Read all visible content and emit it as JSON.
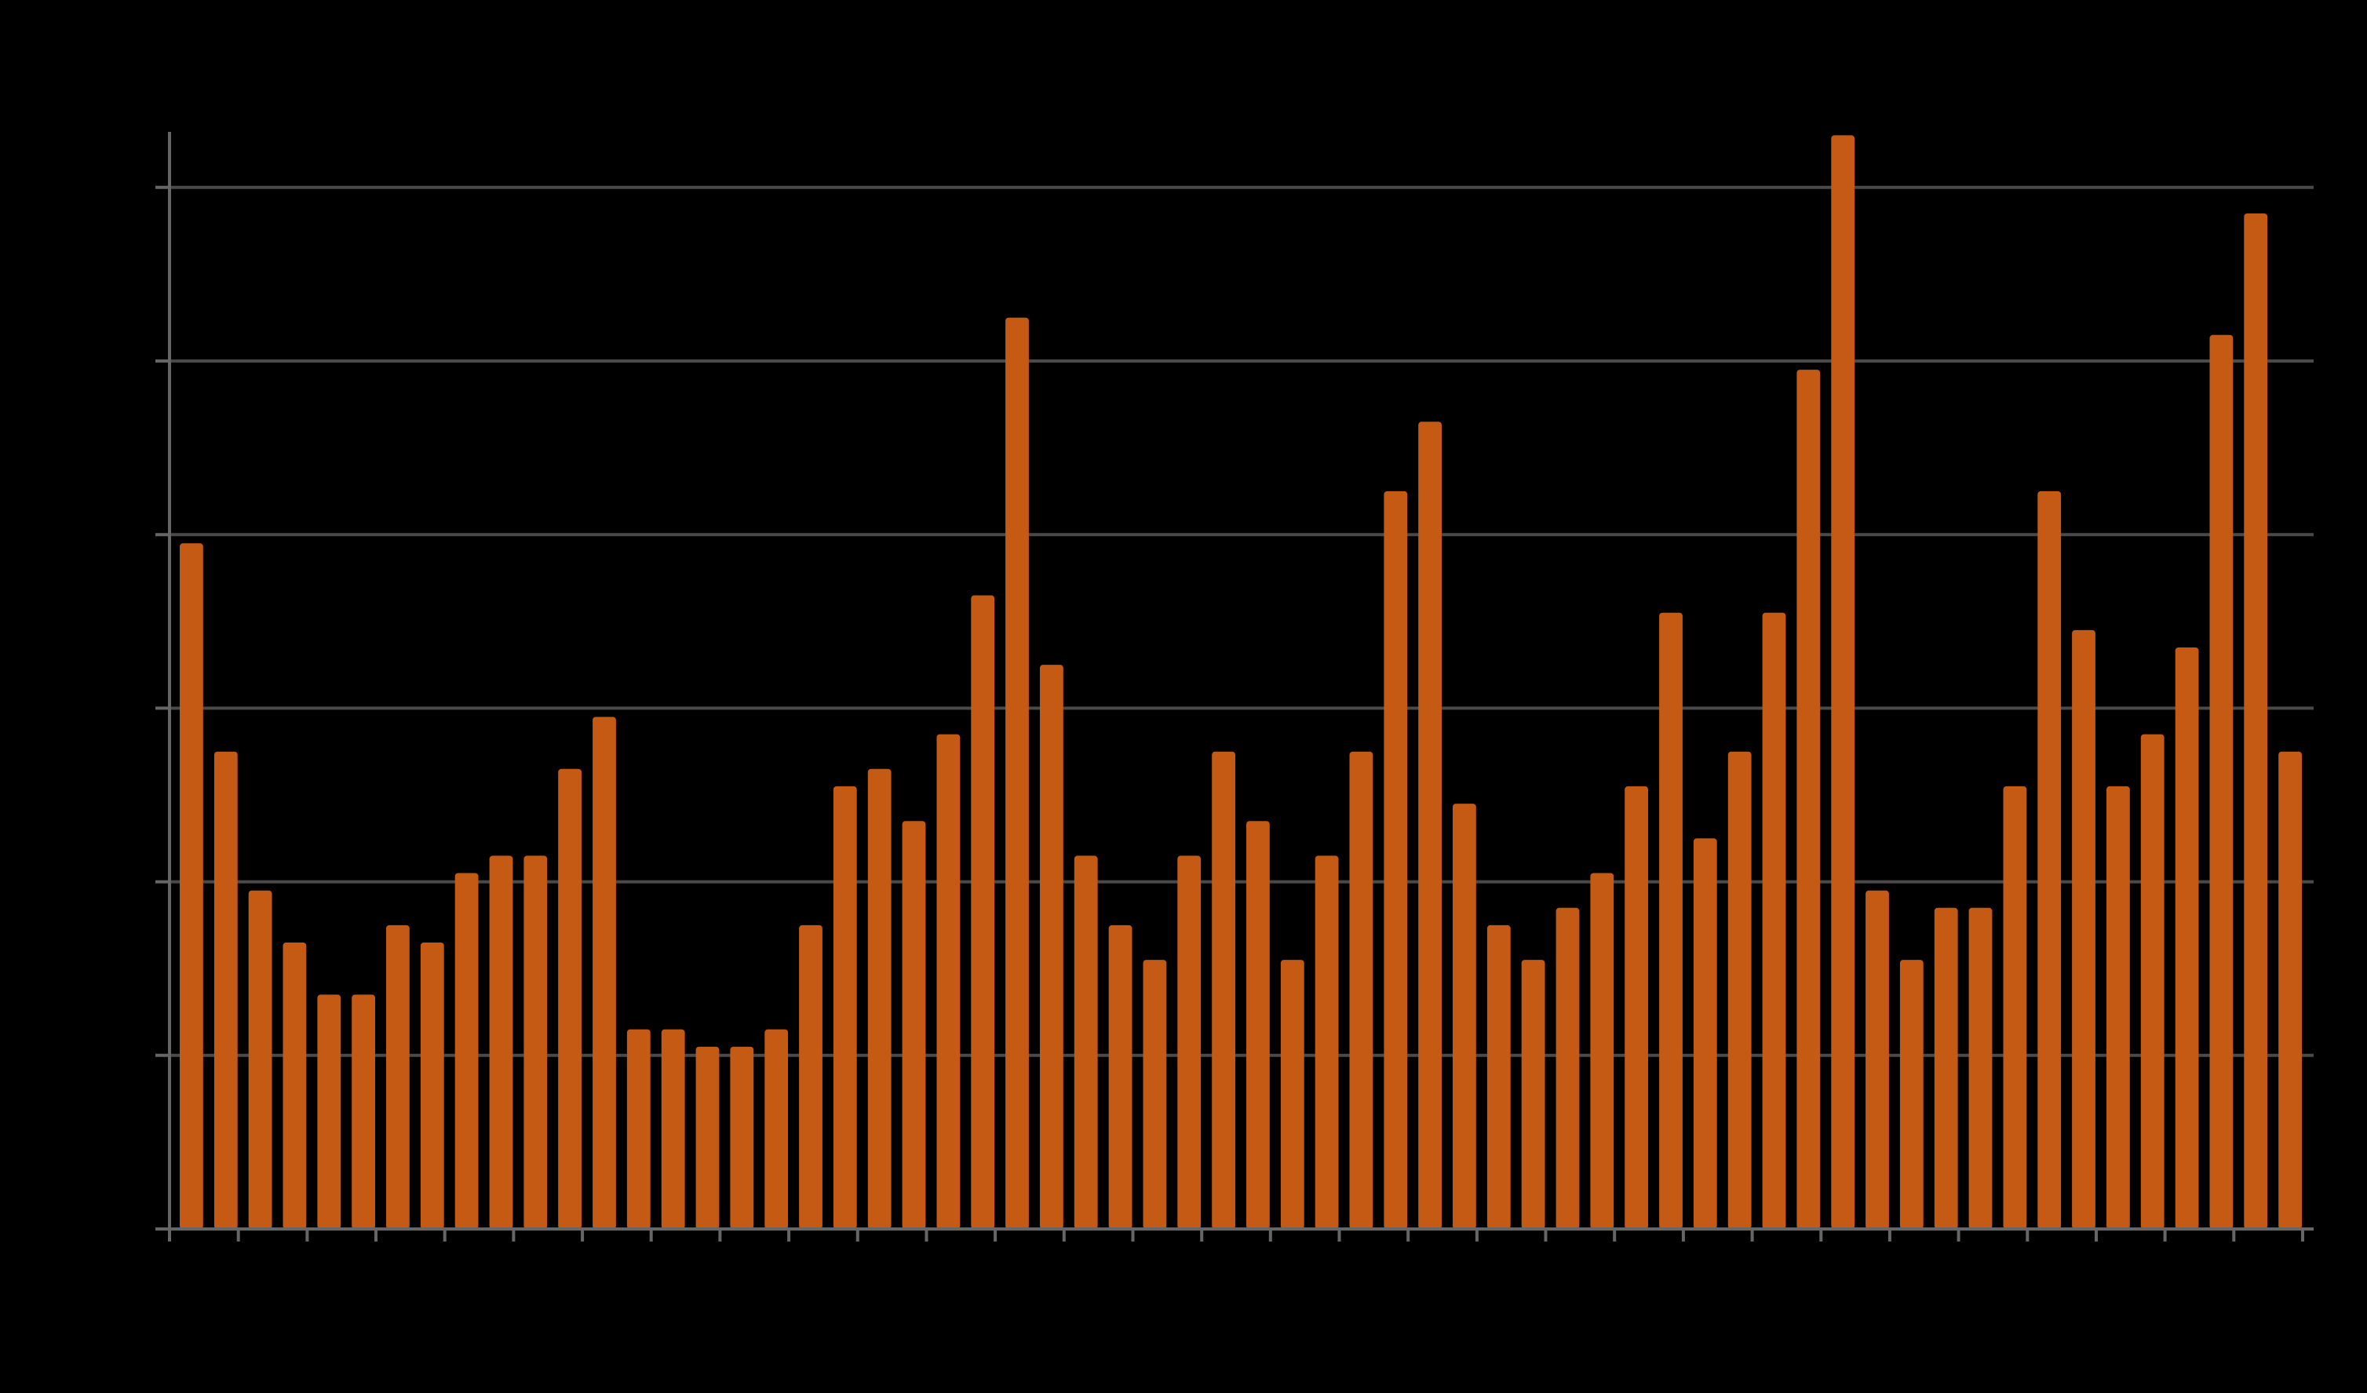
{
  "chart_data": {
    "type": "bar",
    "title": "",
    "xlabel": "",
    "ylabel": "",
    "ylim": [
      0,
      6.3
    ],
    "grid": true,
    "gridlines": [
      1,
      2,
      3,
      4,
      5,
      6
    ],
    "values": [
      3.95,
      2.75,
      1.95,
      1.65,
      1.35,
      1.35,
      1.75,
      1.65,
      2.05,
      2.15,
      2.15,
      2.65,
      2.95,
      1.15,
      1.15,
      1.05,
      1.05,
      1.15,
      1.75,
      2.55,
      2.65,
      2.35,
      2.85,
      3.65,
      5.25,
      3.25,
      2.15,
      1.75,
      1.55,
      2.15,
      2.75,
      2.35,
      1.55,
      2.15,
      2.75,
      4.25,
      4.65,
      2.45,
      1.75,
      1.55,
      1.85,
      2.05,
      2.55,
      3.55,
      2.25,
      2.75,
      3.55,
      4.95,
      6.3,
      1.95,
      1.55,
      1.85,
      1.85,
      2.55,
      4.25,
      3.45,
      2.55,
      2.85,
      3.35,
      5.15,
      5.85,
      2.75
    ],
    "bar_color": "#c45a14",
    "grid_color": "#4a4a4a",
    "axis_color": "#666666",
    "background": "#000000"
  }
}
